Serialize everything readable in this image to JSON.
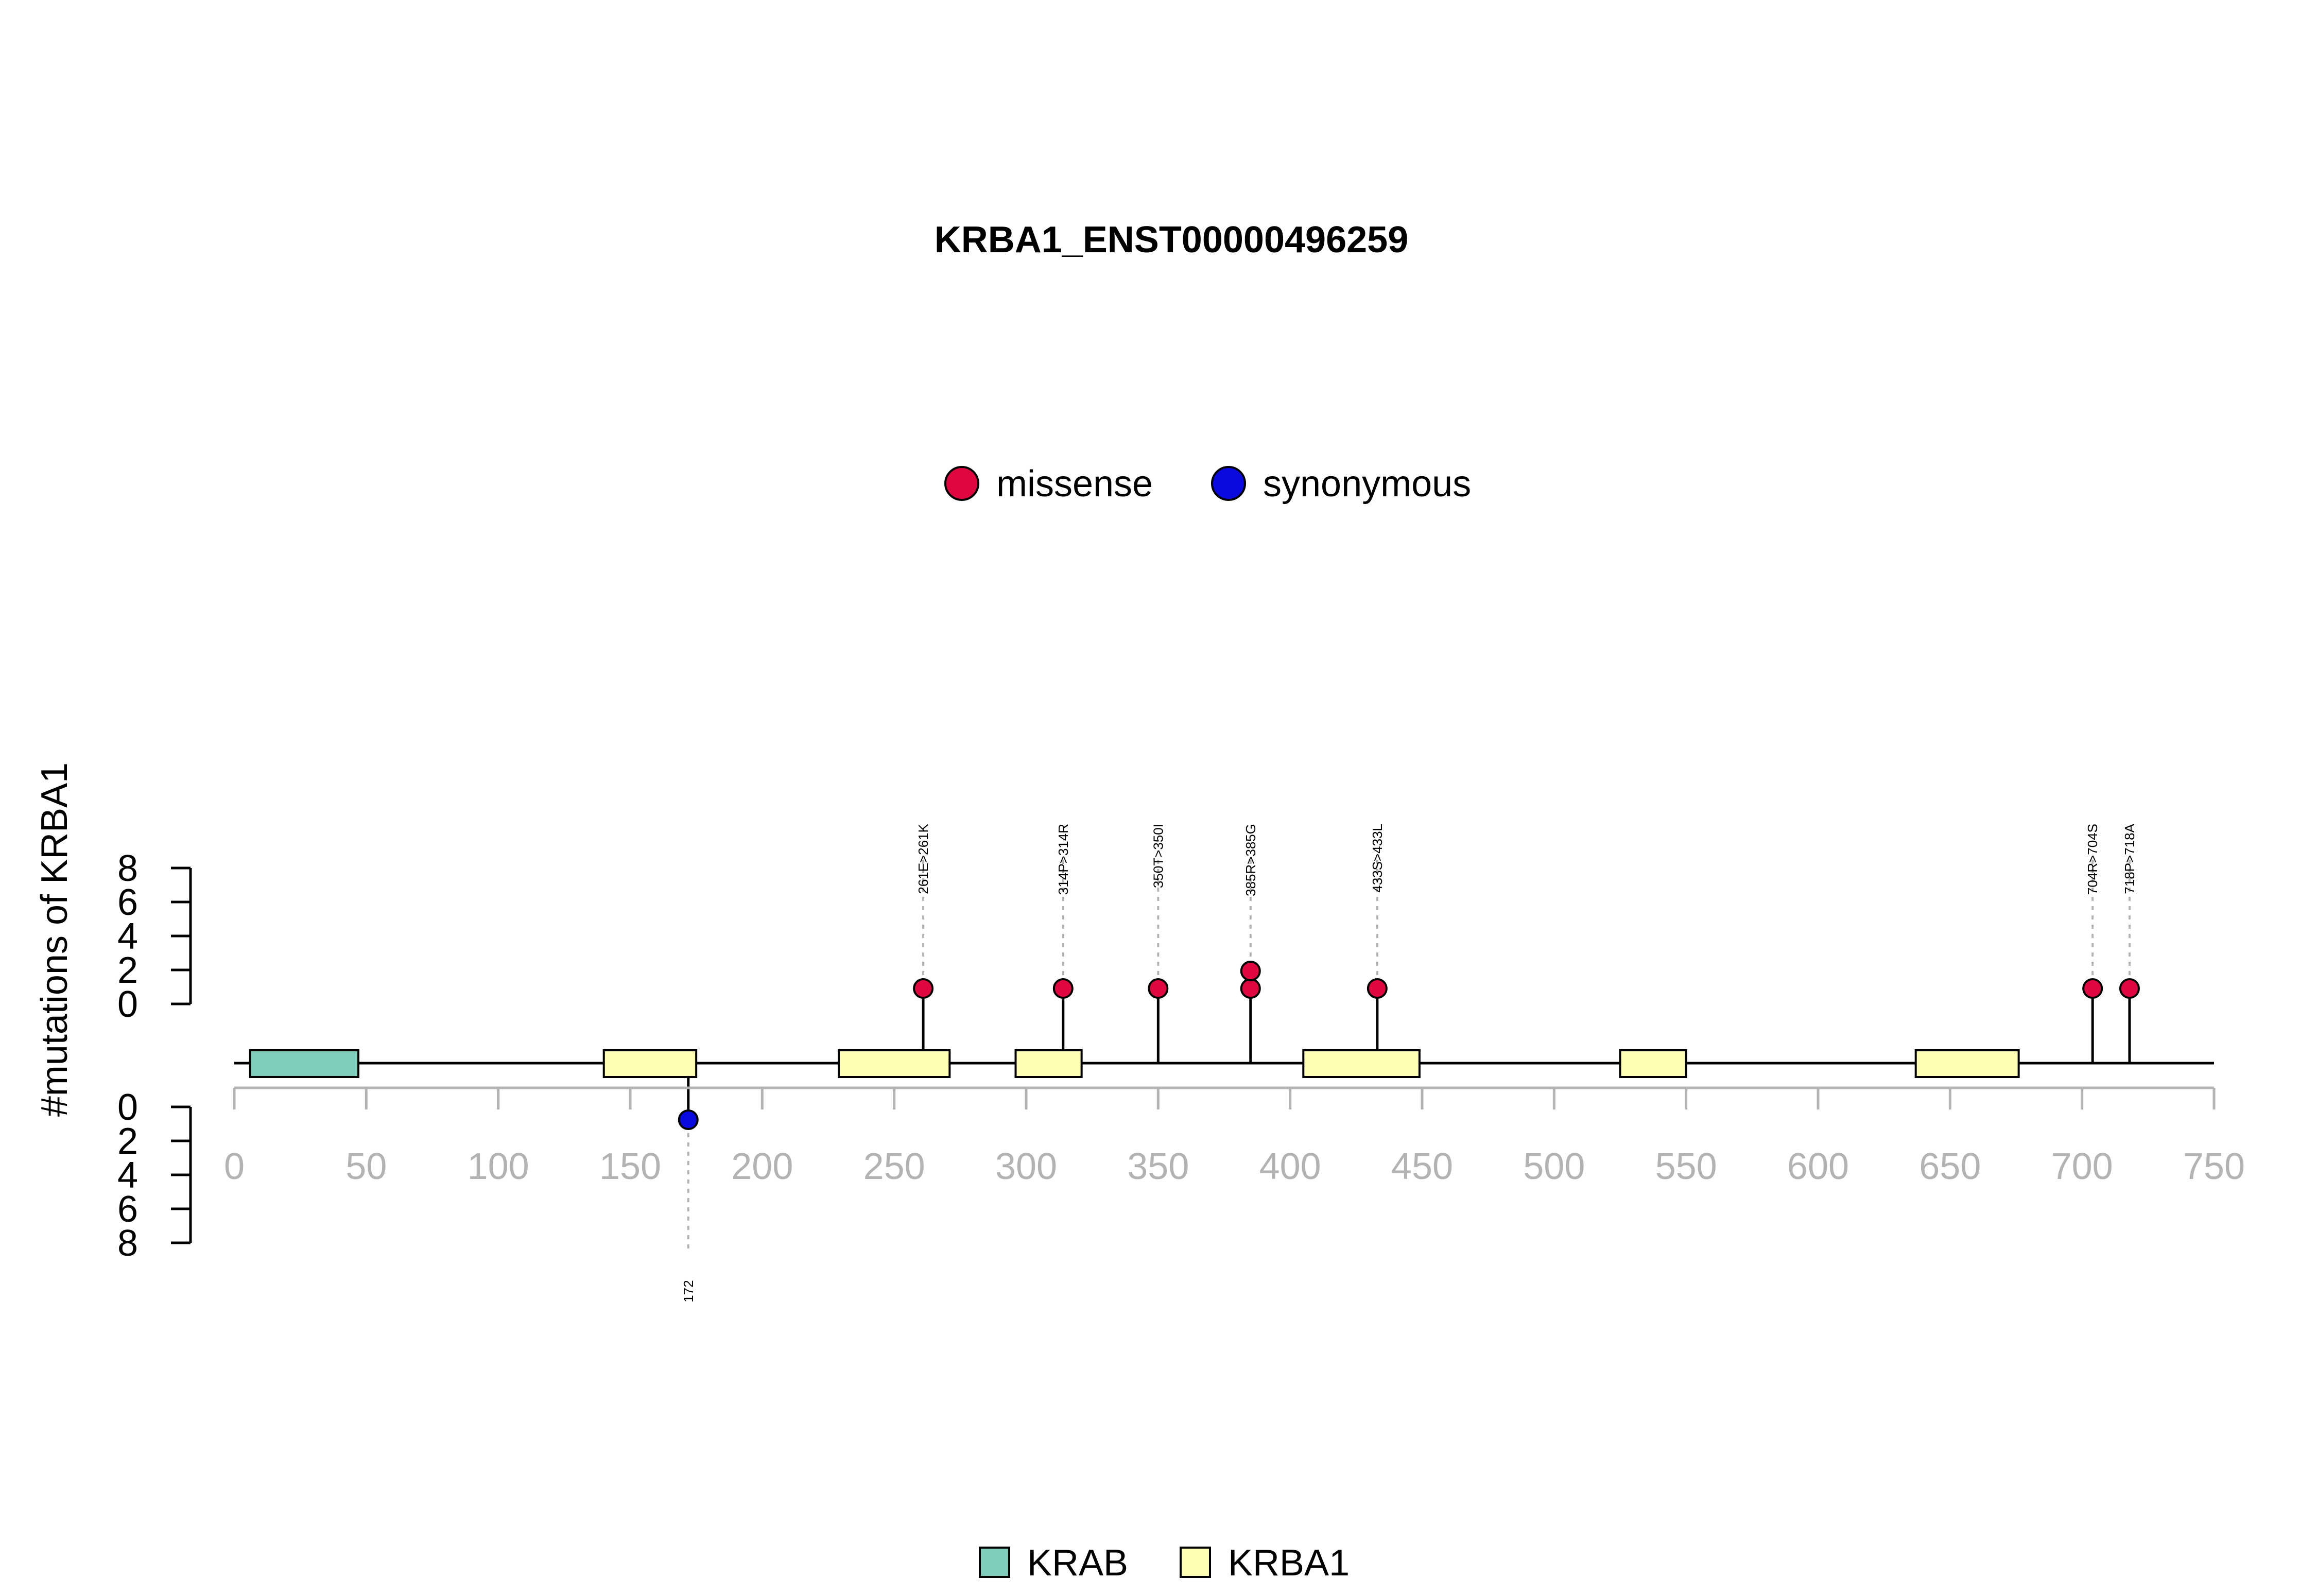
{
  "chart_data": {
    "type": "lollipop",
    "title": "KRBA1_ENST00000496259",
    "ylabel": "#mutations of KRBA1",
    "xlim": [
      0,
      750
    ],
    "x_ticks": [
      0,
      50,
      100,
      150,
      200,
      250,
      300,
      350,
      400,
      450,
      500,
      550,
      600,
      650,
      700,
      750
    ],
    "y_ticks": [
      0,
      2,
      4,
      6,
      8
    ],
    "ylim": [
      0,
      8
    ],
    "mutation_legend": [
      {
        "name": "missense",
        "color": "#e0063f"
      },
      {
        "name": "synonymous",
        "color": "#0a0ae0"
      }
    ],
    "domain_legend": [
      {
        "name": "KRAB",
        "color": "#7fcdbb"
      },
      {
        "name": "KRBA1",
        "color": "#ffffb3"
      }
    ],
    "domains": [
      {
        "name": "KRAB",
        "start": 6,
        "end": 47
      },
      {
        "name": "KRBA1",
        "start": 140,
        "end": 175
      },
      {
        "name": "KRBA1",
        "start": 229,
        "end": 271
      },
      {
        "name": "KRBA1",
        "start": 296,
        "end": 321
      },
      {
        "name": "KRBA1",
        "start": 405,
        "end": 449
      },
      {
        "name": "KRBA1",
        "start": 525,
        "end": 550
      },
      {
        "name": "KRBA1",
        "start": 637,
        "end": 676
      }
    ],
    "mutations_top": [
      {
        "position": 261,
        "label": "261E>261K",
        "type": "missense",
        "count": 1
      },
      {
        "position": 314,
        "label": "314P>314R",
        "type": "missense",
        "count": 1
      },
      {
        "position": 350,
        "label": "350T>350I",
        "type": "missense",
        "count": 1
      },
      {
        "position": 385,
        "label": "385R>385G",
        "type": "missense",
        "count": 2
      },
      {
        "position": 433,
        "label": "433S>433L",
        "type": "missense",
        "count": 1
      },
      {
        "position": 704,
        "label": "704R>704S",
        "type": "missense",
        "count": 1
      },
      {
        "position": 718,
        "label": "718P>718A",
        "type": "missense",
        "count": 1
      }
    ],
    "mutations_bottom": [
      {
        "position": 172,
        "label": "172",
        "type": "synonymous",
        "count": 1
      }
    ]
  }
}
